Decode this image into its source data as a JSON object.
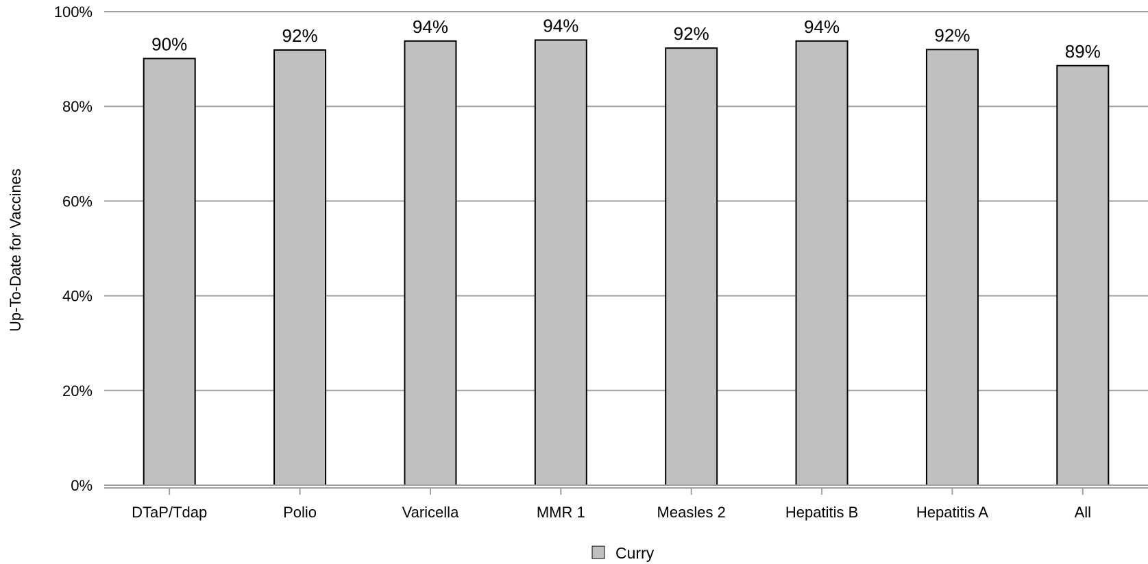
{
  "chart_data": {
    "type": "bar",
    "categories": [
      "DTaP/Tdap",
      "Polio",
      "Varicella",
      "MMR 1",
      "Measles 2",
      "Hepatitis B",
      "Hepatitis A",
      "All"
    ],
    "series": [
      {
        "name": "Curry",
        "values": [
          90.1,
          91.9,
          93.8,
          94.0,
          92.3,
          93.8,
          92.0,
          88.6
        ],
        "labels": [
          "90%",
          "92%",
          "94%",
          "94%",
          "92%",
          "94%",
          "92%",
          "89%"
        ],
        "color": "#c0c0c0"
      }
    ],
    "title": "",
    "xlabel": "",
    "ylabel": "Up-To-Date for Vaccines",
    "ylim": [
      0,
      100
    ],
    "yticks": [
      0,
      20,
      40,
      60,
      80,
      100
    ],
    "ytick_labels": [
      "0%",
      "20%",
      "40%",
      "60%",
      "80%",
      "100%"
    ],
    "grid": true,
    "legend": "bottom-center"
  },
  "colors": {
    "bar_fill": "#c0c0c0",
    "bar_stroke": "#000000",
    "gridline": "#a0a0a0"
  }
}
